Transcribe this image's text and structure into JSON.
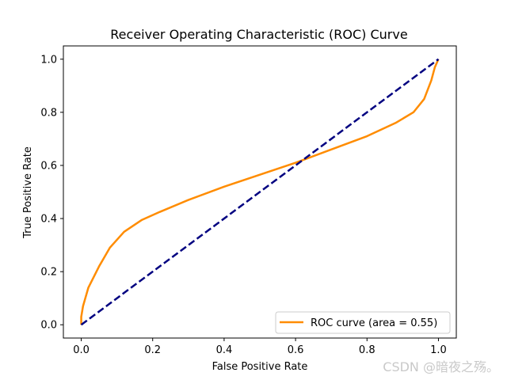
{
  "chart_data": {
    "type": "line",
    "title": "Receiver Operating Characteristic (ROC) Curve",
    "xlabel": "False Positive Rate",
    "ylabel": "True Positive Rate",
    "xlim": [
      -0.05,
      1.05
    ],
    "ylim": [
      -0.05,
      1.05
    ],
    "xticks": [
      0.0,
      0.2,
      0.4,
      0.6,
      0.8,
      1.0
    ],
    "xtick_labels": [
      "0.0",
      "0.2",
      "0.4",
      "0.6",
      "0.8",
      "1.0"
    ],
    "yticks": [
      0.0,
      0.2,
      0.4,
      0.6,
      0.8,
      1.0
    ],
    "ytick_labels": [
      "0.0",
      "0.2",
      "0.4",
      "0.6",
      "0.8",
      "1.0"
    ],
    "grid": false,
    "legend_position": "lower right",
    "series": [
      {
        "name": "ROC curve (area = 0.55)",
        "color": "#ff8c00",
        "style": "solid",
        "x": [
          0.0,
          0.0,
          0.005,
          0.02,
          0.05,
          0.08,
          0.12,
          0.17,
          0.22,
          0.3,
          0.4,
          0.5,
          0.6,
          0.7,
          0.8,
          0.88,
          0.93,
          0.96,
          0.98,
          0.99,
          1.0
        ],
        "y": [
          0.0,
          0.03,
          0.07,
          0.14,
          0.22,
          0.29,
          0.35,
          0.395,
          0.425,
          0.47,
          0.52,
          0.565,
          0.61,
          0.66,
          0.71,
          0.76,
          0.8,
          0.85,
          0.92,
          0.97,
          1.0
        ]
      },
      {
        "name": "",
        "color": "#000080",
        "style": "dashed",
        "x": [
          0.0,
          1.0
        ],
        "y": [
          0.0,
          1.0
        ]
      }
    ]
  },
  "watermark": "CSDN @暗夜之殇。"
}
